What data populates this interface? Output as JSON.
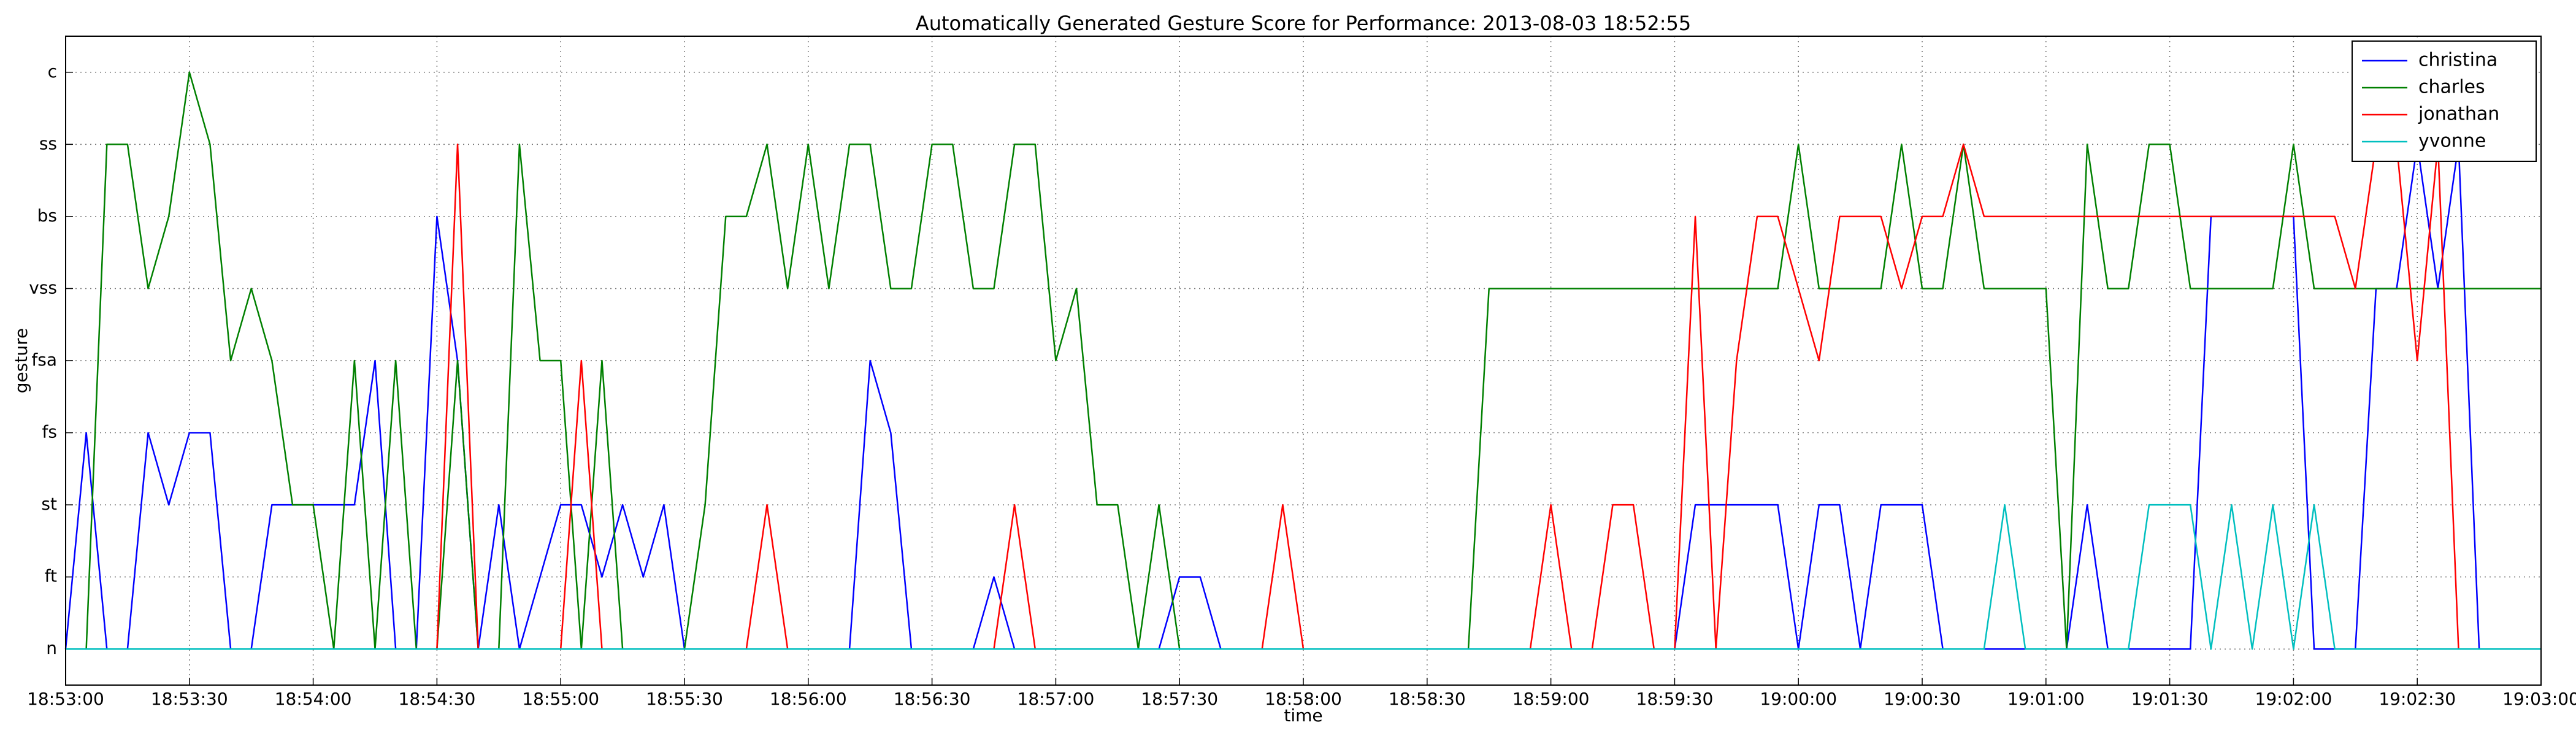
{
  "chart_data": {
    "type": "line",
    "title": "Automatically Generated Gesture Score for Performance: 2013-08-03 18:52:55",
    "x_label": "time",
    "y_label": "gesture",
    "x": [
      "18:53:00",
      "18:53:05",
      "18:53:10",
      "18:53:15",
      "18:53:20",
      "18:53:25",
      "18:53:30",
      "18:53:35",
      "18:53:40",
      "18:53:45",
      "18:53:50",
      "18:53:55",
      "18:54:00",
      "18:54:05",
      "18:54:10",
      "18:54:15",
      "18:54:20",
      "18:54:25",
      "18:54:30",
      "18:54:35",
      "18:54:40",
      "18:54:45",
      "18:54:50",
      "18:54:55",
      "18:55:00",
      "18:55:05",
      "18:55:10",
      "18:55:15",
      "18:55:20",
      "18:55:25",
      "18:55:30",
      "18:55:35",
      "18:55:40",
      "18:55:45",
      "18:55:50",
      "18:55:55",
      "18:56:00",
      "18:56:05",
      "18:56:10",
      "18:56:15",
      "18:56:20",
      "18:56:25",
      "18:56:30",
      "18:56:35",
      "18:56:40",
      "18:56:45",
      "18:56:50",
      "18:56:55",
      "18:57:00",
      "18:57:05",
      "18:57:10",
      "18:57:15",
      "18:57:20",
      "18:57:25",
      "18:57:30",
      "18:57:35",
      "18:57:40",
      "18:57:45",
      "18:57:50",
      "18:57:55",
      "18:58:00",
      "18:58:05",
      "18:58:10",
      "18:58:15",
      "18:58:20",
      "18:58:25",
      "18:58:30",
      "18:58:35",
      "18:58:40",
      "18:58:45",
      "18:58:50",
      "18:58:55",
      "18:59:00",
      "18:59:05",
      "18:59:10",
      "18:59:15",
      "18:59:20",
      "18:59:25",
      "18:59:30",
      "18:59:35",
      "18:59:40",
      "18:59:45",
      "18:59:50",
      "18:59:55",
      "19:00:00",
      "19:00:05",
      "19:00:10",
      "19:00:15",
      "19:00:20",
      "19:00:25",
      "19:00:30",
      "19:00:35",
      "19:00:40",
      "19:00:45",
      "19:00:50",
      "19:00:55",
      "19:01:00",
      "19:01:05",
      "19:01:10",
      "19:01:15",
      "19:01:20",
      "19:01:25",
      "19:01:30",
      "19:01:35",
      "19:01:40",
      "19:01:45",
      "19:01:50",
      "19:01:55",
      "19:02:00",
      "19:02:05",
      "19:02:10",
      "19:02:15",
      "19:02:20",
      "19:02:25",
      "19:02:30",
      "19:02:35",
      "19:02:40",
      "19:02:45",
      "19:02:50",
      "19:02:55",
      "19:03:00"
    ],
    "series": [
      {
        "name": "christina",
        "color": "#0000ff",
        "values": [
          0,
          3,
          0,
          0,
          3,
          2,
          3,
          3,
          0,
          0,
          2,
          2,
          2,
          2,
          2,
          4,
          0,
          0,
          6,
          4,
          0,
          2,
          0,
          1,
          2,
          2,
          1,
          2,
          1,
          2,
          0,
          0,
          0,
          0,
          0,
          0,
          0,
          0,
          0,
          4,
          3,
          0,
          0,
          0,
          0,
          1,
          0,
          0,
          0,
          0,
          0,
          0,
          0,
          0,
          1,
          1,
          0,
          0,
          0,
          0,
          0,
          0,
          0,
          0,
          0,
          0,
          0,
          0,
          0,
          0,
          0,
          0,
          0,
          0,
          0,
          0,
          0,
          0,
          0,
          2,
          2,
          2,
          2,
          2,
          0,
          2,
          2,
          0,
          2,
          2,
          2,
          0,
          0,
          0,
          0,
          0,
          0,
          0,
          2,
          0,
          0,
          0,
          0,
          0,
          6,
          6,
          6,
          6,
          6,
          0,
          0,
          0,
          5,
          5,
          7,
          5,
          7,
          0,
          0,
          0,
          0
        ]
      },
      {
        "name": "charles",
        "color": "#008000",
        "values": [
          0,
          0,
          7,
          7,
          5,
          6,
          8,
          7,
          4,
          5,
          4,
          2,
          2,
          0,
          4,
          0,
          4,
          0,
          0,
          4,
          0,
          0,
          7,
          4,
          4,
          0,
          4,
          0,
          0,
          0,
          0,
          2,
          6,
          6,
          7,
          5,
          7,
          5,
          7,
          7,
          5,
          5,
          7,
          7,
          5,
          5,
          7,
          7,
          4,
          5,
          2,
          2,
          0,
          2,
          0,
          0,
          0,
          0,
          0,
          0,
          0,
          0,
          0,
          0,
          0,
          0,
          0,
          0,
          0,
          5,
          5,
          5,
          5,
          5,
          5,
          5,
          5,
          5,
          5,
          5,
          5,
          5,
          5,
          5,
          7,
          5,
          5,
          5,
          5,
          7,
          5,
          5,
          7,
          5,
          5,
          5,
          5,
          0,
          7,
          5,
          5,
          7,
          7,
          5,
          5,
          5,
          5,
          5,
          7,
          5,
          5,
          5,
          5,
          5,
          5,
          5,
          5,
          5,
          5,
          5,
          5
        ]
      },
      {
        "name": "jonathan",
        "color": "#ff0000",
        "values": [
          0,
          0,
          0,
          0,
          0,
          0,
          0,
          0,
          0,
          0,
          0,
          0,
          0,
          0,
          0,
          0,
          0,
          0,
          0,
          7,
          0,
          0,
          0,
          0,
          0,
          4,
          0,
          0,
          0,
          0,
          0,
          0,
          0,
          0,
          2,
          0,
          0,
          0,
          0,
          0,
          0,
          0,
          0,
          0,
          0,
          0,
          2,
          0,
          0,
          0,
          0,
          0,
          0,
          0,
          0,
          0,
          0,
          0,
          0,
          2,
          0,
          0,
          0,
          0,
          0,
          0,
          0,
          0,
          0,
          0,
          0,
          0,
          2,
          0,
          0,
          2,
          2,
          0,
          0,
          6,
          0,
          4,
          6,
          6,
          5,
          4,
          6,
          6,
          6,
          5,
          6,
          6,
          7,
          6,
          6,
          6,
          6,
          6,
          6,
          6,
          6,
          6,
          6,
          6,
          6,
          6,
          6,
          6,
          6,
          6,
          6,
          5,
          7,
          7,
          4,
          7,
          0,
          0,
          0,
          0,
          0
        ]
      },
      {
        "name": "yvonne",
        "color": "#00bfbf",
        "values": [
          0,
          0,
          0,
          0,
          0,
          0,
          0,
          0,
          0,
          0,
          0,
          0,
          0,
          0,
          0,
          0,
          0,
          0,
          0,
          0,
          0,
          0,
          0,
          0,
          0,
          0,
          0,
          0,
          0,
          0,
          0,
          0,
          0,
          0,
          0,
          0,
          0,
          0,
          0,
          0,
          0,
          0,
          0,
          0,
          0,
          0,
          0,
          0,
          0,
          0,
          0,
          0,
          0,
          0,
          0,
          0,
          0,
          0,
          0,
          0,
          0,
          0,
          0,
          0,
          0,
          0,
          0,
          0,
          0,
          0,
          0,
          0,
          0,
          0,
          0,
          0,
          0,
          0,
          0,
          0,
          0,
          0,
          0,
          0,
          0,
          0,
          0,
          0,
          0,
          0,
          0,
          0,
          0,
          0,
          2,
          0,
          0,
          0,
          0,
          0,
          0,
          2,
          2,
          2,
          0,
          2,
          0,
          2,
          0,
          2,
          0,
          0,
          0,
          0,
          0,
          0,
          0,
          0,
          0,
          0,
          0
        ]
      }
    ],
    "xlim": [
      "18:53:00",
      "19:03:00"
    ],
    "xticks": [
      "18:53:00",
      "18:53:30",
      "18:54:00",
      "18:54:30",
      "18:55:00",
      "18:55:30",
      "18:56:00",
      "18:56:30",
      "18:57:00",
      "18:57:30",
      "18:58:00",
      "18:58:30",
      "18:59:00",
      "18:59:30",
      "19:00:00",
      "19:00:30",
      "19:01:00",
      "19:01:30",
      "19:02:00",
      "19:02:30",
      "19:03:00"
    ],
    "ylim": [
      -0.5,
      8.5
    ],
    "yticks": [
      {
        "value": 0,
        "label": "n"
      },
      {
        "value": 1,
        "label": "ft"
      },
      {
        "value": 2,
        "label": "st"
      },
      {
        "value": 3,
        "label": "fs"
      },
      {
        "value": 4,
        "label": "fsa"
      },
      {
        "value": 5,
        "label": "vss"
      },
      {
        "value": 6,
        "label": "bs"
      },
      {
        "value": 7,
        "label": "ss"
      },
      {
        "value": 8,
        "label": "c"
      }
    ],
    "grid": true,
    "legend": "upper right"
  }
}
